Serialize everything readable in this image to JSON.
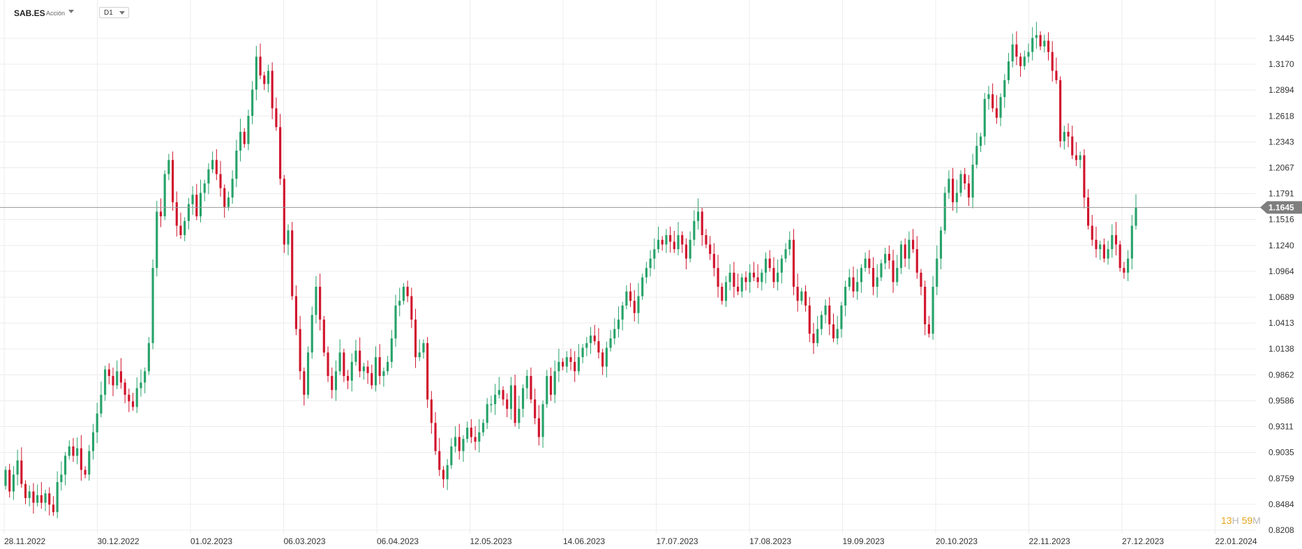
{
  "toolbar": {
    "symbol": "SAB.ES",
    "symbol_type": "Acción",
    "timeframe": "D1"
  },
  "countdown": {
    "hours": "13",
    "h_unit": "H",
    "minutes": "59",
    "m_unit": "M"
  },
  "colors": {
    "up": "#26a269",
    "down": "#d0142c",
    "grid": "#ececec",
    "current_line": "#9a9a9a",
    "current_label_bg": "#7e7e7e"
  },
  "chart_data": {
    "type": "candlestick",
    "ylim": [
      0.8208,
      1.3725
    ],
    "y_ticks": [
      "1.3445",
      "1.3170",
      "1.2894",
      "1.2618",
      "1.2343",
      "1.2067",
      "1.1791",
      "1.1516",
      "1.1240",
      "1.0964",
      "1.0689",
      "1.0413",
      "1.0138",
      "0.9862",
      "0.9586",
      "0.9311",
      "0.9035",
      "0.8759",
      "0.8484",
      "0.8208"
    ],
    "x_ticks": [
      "28.11.2022",
      "30.12.2022",
      "01.02.2023",
      "06.03.2023",
      "06.04.2023",
      "12.05.2023",
      "14.06.2023",
      "17.07.2023",
      "17.08.2023",
      "19.09.2023",
      "20.10.2023",
      "22.11.2023",
      "27.12.2023",
      "22.01.2024"
    ],
    "current_price": "1.1645",
    "current_value": 1.1645,
    "candles": [
      [
        0.868,
        0.885
      ],
      [
        0.885,
        0.862
      ],
      [
        0.862,
        0.88
      ],
      [
        0.88,
        0.895
      ],
      [
        0.895,
        0.87
      ],
      [
        0.87,
        0.855
      ],
      [
        0.855,
        0.862
      ],
      [
        0.862,
        0.85
      ],
      [
        0.85,
        0.858
      ],
      [
        0.858,
        0.85
      ],
      [
        0.85,
        0.86
      ],
      [
        0.86,
        0.848
      ],
      [
        0.848,
        0.84
      ],
      [
        0.84,
        0.872
      ],
      [
        0.872,
        0.88
      ],
      [
        0.88,
        0.9
      ],
      [
        0.9,
        0.91
      ],
      [
        0.91,
        0.9
      ],
      [
        0.9,
        0.908
      ],
      [
        0.908,
        0.885
      ],
      [
        0.885,
        0.88
      ],
      [
        0.88,
        0.905
      ],
      [
        0.905,
        0.925
      ],
      [
        0.925,
        0.945
      ],
      [
        0.945,
        0.965
      ],
      [
        0.965,
        0.992
      ],
      [
        0.992,
        0.985
      ],
      [
        0.985,
        0.975
      ],
      [
        0.975,
        0.99
      ],
      [
        0.99,
        0.978
      ],
      [
        0.978,
        0.965
      ],
      [
        0.965,
        0.958
      ],
      [
        0.958,
        0.952
      ],
      [
        0.952,
        0.972
      ],
      [
        0.972,
        0.978
      ],
      [
        0.978,
        0.99
      ],
      [
        0.99,
        1.02
      ],
      [
        1.02,
        1.1
      ],
      [
        1.1,
        1.16
      ],
      [
        1.16,
        1.155
      ],
      [
        1.155,
        1.2
      ],
      [
        1.2,
        1.215
      ],
      [
        1.215,
        1.17
      ],
      [
        1.17,
        1.145
      ],
      [
        1.145,
        1.135
      ],
      [
        1.135,
        1.15
      ],
      [
        1.15,
        1.168
      ],
      [
        1.168,
        1.178
      ],
      [
        1.178,
        1.155
      ],
      [
        1.155,
        1.18
      ],
      [
        1.18,
        1.19
      ],
      [
        1.19,
        1.205
      ],
      [
        1.205,
        1.215
      ],
      [
        1.215,
        1.2
      ],
      [
        1.2,
        1.185
      ],
      [
        1.185,
        1.165
      ],
      [
        1.165,
        1.175
      ],
      [
        1.175,
        1.195
      ],
      [
        1.195,
        1.225
      ],
      [
        1.225,
        1.245
      ],
      [
        1.245,
        1.232
      ],
      [
        1.232,
        1.262
      ],
      [
        1.262,
        1.29
      ],
      [
        1.29,
        1.325
      ],
      [
        1.325,
        1.305
      ],
      [
        1.305,
        1.296
      ],
      [
        1.296,
        1.31
      ],
      [
        1.31,
        1.27
      ],
      [
        1.27,
        1.25
      ],
      [
        1.25,
        1.195
      ],
      [
        1.195,
        1.125
      ],
      [
        1.125,
        1.14
      ],
      [
        1.14,
        1.07
      ],
      [
        1.07,
        1.035
      ],
      [
        1.035,
        0.99
      ],
      [
        0.99,
        0.965
      ],
      [
        0.965,
        1.01
      ],
      [
        1.01,
        1.05
      ],
      [
        1.05,
        1.08
      ],
      [
        1.08,
        1.045
      ],
      [
        1.045,
        1.01
      ],
      [
        1.01,
        0.985
      ],
      [
        0.985,
        0.97
      ],
      [
        0.97,
        0.99
      ],
      [
        0.99,
        1.01
      ],
      [
        1.01,
        0.985
      ],
      [
        0.985,
        0.98
      ],
      [
        0.98,
        1.0
      ],
      [
        1.0,
        1.012
      ],
      [
        1.012,
        0.99
      ],
      [
        0.99,
        0.995
      ],
      [
        0.995,
        0.988
      ],
      [
        0.988,
        0.975
      ],
      [
        0.975,
        1.005
      ],
      [
        1.005,
        0.985
      ],
      [
        0.985,
        0.99
      ],
      [
        0.99,
        1.0
      ],
      [
        1.0,
        1.025
      ],
      [
        1.025,
        1.06
      ],
      [
        1.06,
        1.065
      ],
      [
        1.065,
        1.08
      ],
      [
        1.08,
        1.07
      ],
      [
        1.07,
        1.045
      ],
      [
        1.045,
        1.005
      ],
      [
        1.005,
        1.01
      ],
      [
        1.01,
        1.02
      ],
      [
        1.02,
        0.96
      ],
      [
        0.96,
        0.935
      ],
      [
        0.935,
        0.905
      ],
      [
        0.905,
        0.885
      ],
      [
        0.885,
        0.875
      ],
      [
        0.875,
        0.89
      ],
      [
        0.89,
        0.91
      ],
      [
        0.91,
        0.92
      ],
      [
        0.92,
        0.905
      ],
      [
        0.905,
        0.918
      ],
      [
        0.918,
        0.93
      ],
      [
        0.93,
        0.92
      ],
      [
        0.92,
        0.915
      ],
      [
        0.915,
        0.925
      ],
      [
        0.925,
        0.935
      ],
      [
        0.935,
        0.955
      ],
      [
        0.955,
        0.955
      ],
      [
        0.955,
        0.965
      ],
      [
        0.965,
        0.97
      ],
      [
        0.97,
        0.96
      ],
      [
        0.96,
        0.95
      ],
      [
        0.95,
        0.975
      ],
      [
        0.975,
        0.935
      ],
      [
        0.935,
        0.95
      ],
      [
        0.95,
        0.972
      ],
      [
        0.972,
        0.985
      ],
      [
        0.985,
        0.96
      ],
      [
        0.96,
        0.94
      ],
      [
        0.94,
        0.92
      ],
      [
        0.92,
        0.955
      ],
      [
        0.955,
        0.985
      ],
      [
        0.985,
        0.965
      ],
      [
        0.965,
        0.99
      ],
      [
        0.99,
        1.0
      ],
      [
        1.0,
        0.995
      ],
      [
        0.995,
        1.005
      ],
      [
        1.005,
        1.0
      ],
      [
        1.0,
        0.99
      ],
      [
        0.99,
        1.005
      ],
      [
        1.005,
        1.015
      ],
      [
        1.015,
        1.02
      ],
      [
        1.02,
        1.028
      ],
      [
        1.028,
        1.022
      ],
      [
        1.022,
        1.01
      ],
      [
        1.01,
        0.995
      ],
      [
        0.995,
        1.015
      ],
      [
        1.015,
        1.025
      ],
      [
        1.025,
        1.035
      ],
      [
        1.035,
        1.045
      ],
      [
        1.045,
        1.06
      ],
      [
        1.06,
        1.075
      ],
      [
        1.075,
        1.065
      ],
      [
        1.065,
        1.052
      ],
      [
        1.052,
        1.07
      ],
      [
        1.07,
        1.09
      ],
      [
        1.09,
        1.1
      ],
      [
        1.1,
        1.11
      ],
      [
        1.11,
        1.12
      ],
      [
        1.12,
        1.13
      ],
      [
        1.13,
        1.125
      ],
      [
        1.125,
        1.135
      ],
      [
        1.135,
        1.128
      ],
      [
        1.128,
        1.12
      ],
      [
        1.12,
        1.135
      ],
      [
        1.135,
        1.125
      ],
      [
        1.125,
        1.11
      ],
      [
        1.11,
        1.13
      ],
      [
        1.13,
        1.15
      ],
      [
        1.15,
        1.16
      ],
      [
        1.16,
        1.135
      ],
      [
        1.135,
        1.125
      ],
      [
        1.125,
        1.115
      ],
      [
        1.115,
        1.1
      ],
      [
        1.1,
        1.08
      ],
      [
        1.08,
        1.065
      ],
      [
        1.065,
        1.085
      ],
      [
        1.085,
        1.095
      ],
      [
        1.095,
        1.08
      ],
      [
        1.08,
        1.075
      ],
      [
        1.075,
        1.09
      ],
      [
        1.09,
        1.085
      ],
      [
        1.085,
        1.095
      ],
      [
        1.095,
        1.09
      ],
      [
        1.09,
        1.085
      ],
      [
        1.085,
        1.095
      ],
      [
        1.095,
        1.11
      ],
      [
        1.11,
        1.1
      ],
      [
        1.1,
        1.085
      ],
      [
        1.085,
        1.095
      ],
      [
        1.095,
        1.11
      ],
      [
        1.11,
        1.12
      ],
      [
        1.12,
        1.13
      ],
      [
        1.13,
        1.08
      ],
      [
        1.08,
        1.065
      ],
      [
        1.065,
        1.075
      ],
      [
        1.075,
        1.06
      ],
      [
        1.06,
        1.03
      ],
      [
        1.03,
        1.02
      ],
      [
        1.02,
        1.035
      ],
      [
        1.035,
        1.05
      ],
      [
        1.05,
        1.06
      ],
      [
        1.06,
        1.04
      ],
      [
        1.04,
        1.025
      ],
      [
        1.025,
        1.035
      ],
      [
        1.035,
        1.06
      ],
      [
        1.06,
        1.08
      ],
      [
        1.08,
        1.09
      ],
      [
        1.09,
        1.075
      ],
      [
        1.075,
        1.085
      ],
      [
        1.085,
        1.1
      ],
      [
        1.1,
        1.11
      ],
      [
        1.11,
        1.1
      ],
      [
        1.1,
        1.08
      ],
      [
        1.08,
        1.09
      ],
      [
        1.09,
        1.105
      ],
      [
        1.105,
        1.115
      ],
      [
        1.115,
        1.108
      ],
      [
        1.108,
        1.085
      ],
      [
        1.085,
        1.1
      ],
      [
        1.1,
        1.125
      ],
      [
        1.125,
        1.11
      ],
      [
        1.11,
        1.13
      ],
      [
        1.13,
        1.12
      ],
      [
        1.12,
        1.095
      ],
      [
        1.095,
        1.08
      ],
      [
        1.08,
        1.04
      ],
      [
        1.04,
        1.03
      ],
      [
        1.03,
        1.08
      ],
      [
        1.08,
        1.11
      ],
      [
        1.11,
        1.14
      ],
      [
        1.14,
        1.18
      ],
      [
        1.18,
        1.195
      ],
      [
        1.195,
        1.17
      ],
      [
        1.17,
        1.18
      ],
      [
        1.18,
        1.2
      ],
      [
        1.2,
        1.19
      ],
      [
        1.19,
        1.175
      ],
      [
        1.175,
        1.21
      ],
      [
        1.21,
        1.23
      ],
      [
        1.23,
        1.24
      ],
      [
        1.24,
        1.28
      ],
      [
        1.28,
        1.285
      ],
      [
        1.285,
        1.27
      ],
      [
        1.27,
        1.26
      ],
      [
        1.26,
        1.282
      ],
      [
        1.282,
        1.3
      ],
      [
        1.3,
        1.32
      ],
      [
        1.32,
        1.338
      ],
      [
        1.338,
        1.325
      ],
      [
        1.325,
        1.315
      ],
      [
        1.315,
        1.325
      ],
      [
        1.325,
        1.33
      ],
      [
        1.33,
        1.345
      ],
      [
        1.345,
        1.348
      ],
      [
        1.348,
        1.336
      ],
      [
        1.336,
        1.342
      ],
      [
        1.342,
        1.33
      ],
      [
        1.33,
        1.31
      ],
      [
        1.31,
        1.3
      ],
      [
        1.3,
        1.235
      ],
      [
        1.235,
        1.245
      ],
      [
        1.245,
        1.24
      ],
      [
        1.24,
        1.22
      ],
      [
        1.22,
        1.215
      ],
      [
        1.215,
        1.22
      ],
      [
        1.22,
        1.175
      ],
      [
        1.175,
        1.145
      ],
      [
        1.145,
        1.13
      ],
      [
        1.13,
        1.12
      ],
      [
        1.12,
        1.125
      ],
      [
        1.125,
        1.11
      ],
      [
        1.11,
        1.12
      ],
      [
        1.12,
        1.135
      ],
      [
        1.135,
        1.125
      ],
      [
        1.125,
        1.1
      ],
      [
        1.1,
        1.095
      ],
      [
        1.095,
        1.11
      ],
      [
        1.11,
        1.145
      ],
      [
        1.145,
        1.1645
      ]
    ]
  }
}
